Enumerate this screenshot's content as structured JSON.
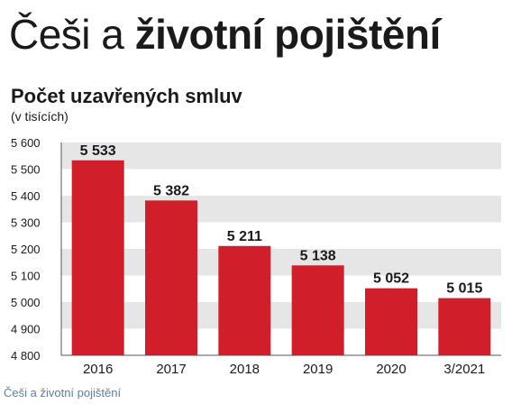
{
  "headline": {
    "part1": "Češi a ",
    "part2": "životní pojištění"
  },
  "caption": "Češi a životní pojištění",
  "chart_data": {
    "type": "bar",
    "title": "Počet uzavřených smluv",
    "subtitle": "(v tisících)",
    "categories": [
      "2016",
      "2017",
      "2018",
      "2019",
      "2020",
      "3/2021"
    ],
    "values": [
      5533,
      5382,
      5211,
      5138,
      5052,
      5015
    ],
    "data_labels": [
      "5 533",
      "5 382",
      "5 211",
      "5 138",
      "5 052",
      "5 015"
    ],
    "y_ticks": [
      4800,
      4900,
      5000,
      5100,
      5200,
      5300,
      5400,
      5500,
      5600
    ],
    "y_tick_labels": [
      "4 800",
      "4 900",
      "5 000",
      "5 100",
      "5 200",
      "5 300",
      "5 400",
      "5 500",
      "5 600"
    ],
    "ylim": [
      4800,
      5600
    ],
    "grid": "alternating horizontal bands",
    "colors": {
      "bar": "#d01f2a",
      "band_dark": "#e6e6e6",
      "band_light": "#ffffff",
      "axis": "#555555"
    }
  }
}
